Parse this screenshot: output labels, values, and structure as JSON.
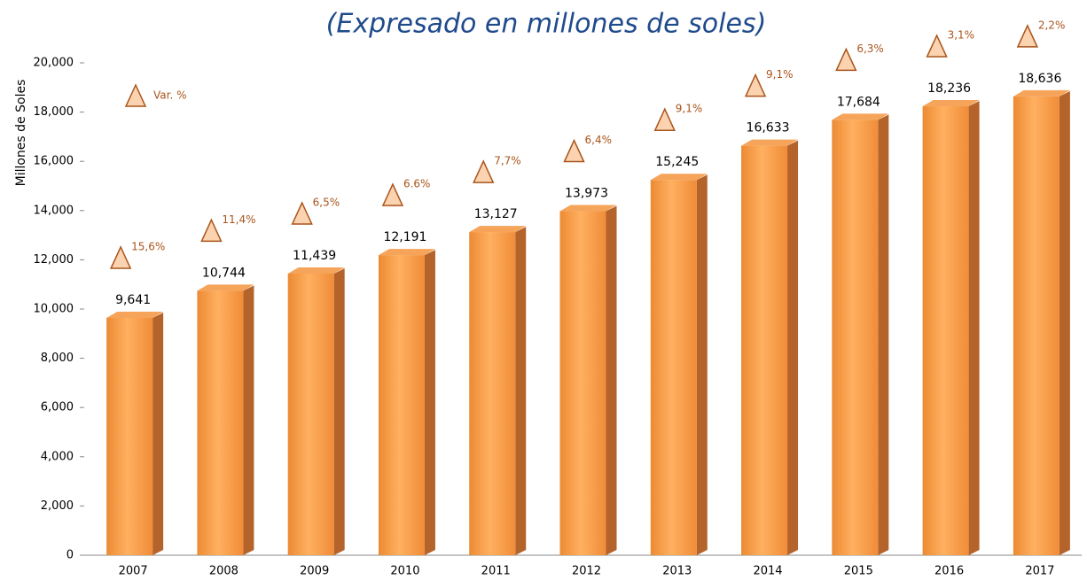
{
  "chart_data": {
    "type": "bar",
    "title": "(Expresado en millones de soles)",
    "ylabel": "Millones de  Soles",
    "categories": [
      "2007",
      "2008",
      "2009",
      "2010",
      "2011",
      "2012",
      "2013",
      "2014",
      "2015",
      "2016",
      "2017"
    ],
    "values": [
      9641,
      10744,
      11439,
      12191,
      13127,
      13973,
      15245,
      16633,
      17684,
      18236,
      18636
    ],
    "value_labels": [
      "9,641",
      "10,744",
      "11,439",
      "12,191",
      "13,127",
      "13,973",
      "15,245",
      "16,633",
      "17,684",
      "18,236",
      "18,636"
    ],
    "variation_legend": "Var. %",
    "variation_labels": [
      "15,6%",
      "11,4%",
      "6,5%",
      "6.6%",
      "7,7%",
      "6,4%",
      "9,1%",
      "9,1%",
      "6,3%",
      "3,1%",
      "2,2%"
    ],
    "color": "#f79646",
    "ylim": [
      0,
      20000
    ],
    "yticks": [
      0,
      {
        "value": 2000,
        "label": "2,000"
      },
      {
        "value": 4000,
        "label": "4,000"
      },
      {
        "value": 6000,
        "label": "6,000"
      },
      {
        "value": 8000,
        "label": "8,000"
      },
      {
        "value": 10000,
        "label": "10,000"
      },
      {
        "value": 12000,
        "label": "12,000"
      },
      {
        "value": 14000,
        "label": "14,000"
      },
      {
        "value": 16000,
        "label": "16,000"
      },
      {
        "value": 18000,
        "label": "18,000"
      },
      {
        "value": 20000,
        "label": "20,000"
      }
    ],
    "grid": false
  }
}
